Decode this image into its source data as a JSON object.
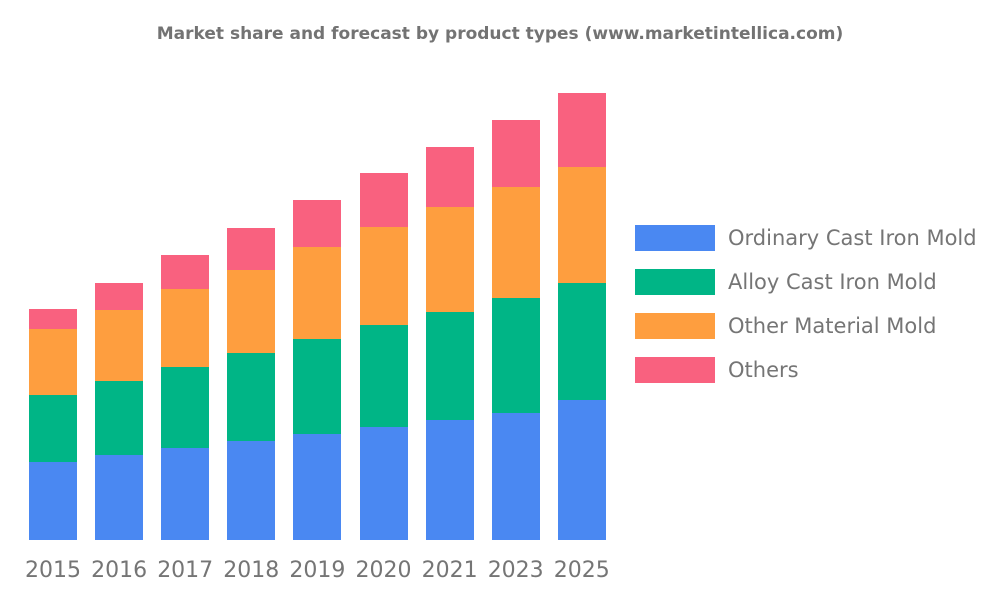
{
  "chart_data": {
    "type": "bar",
    "stacked": true,
    "title": "Market share and forecast by product types (www.marketintellica.com)",
    "xlabel": "",
    "ylabel": "",
    "grid": false,
    "value_axis_visible": false,
    "legend_position": "right",
    "note": "No value axis is shown in the chart; series values are estimated relative heights (pixels) read from the bars.",
    "categories": [
      "2015",
      "2016",
      "2017",
      "2018",
      "2019",
      "2020",
      "2021",
      "2023",
      "2025"
    ],
    "series": [
      {
        "name": "Ordinary Cast Iron Mold",
        "color": "#4a88f2",
        "values": [
          78,
          85,
          92,
          99,
          106,
          113,
          120,
          127,
          140
        ]
      },
      {
        "name": "Alloy Cast Iron Mold",
        "color": "#00b586",
        "values": [
          67,
          74,
          81,
          88,
          95,
          102,
          108,
          115,
          117
        ]
      },
      {
        "name": "Other Material Mold",
        "color": "#fe9e3f",
        "values": [
          66,
          71,
          78,
          83,
          92,
          98,
          105,
          111,
          116
        ]
      },
      {
        "name": "Others",
        "color": "#f9617f",
        "values": [
          20,
          27,
          34,
          42,
          47,
          54,
          60,
          67,
          74
        ]
      }
    ],
    "stack_order": "first series at bottom, last series on top"
  },
  "styles": {
    "title_color": "#737373",
    "axis_label_color": "#757575",
    "legend_label_color": "#757575",
    "background": "#ffffff"
  }
}
